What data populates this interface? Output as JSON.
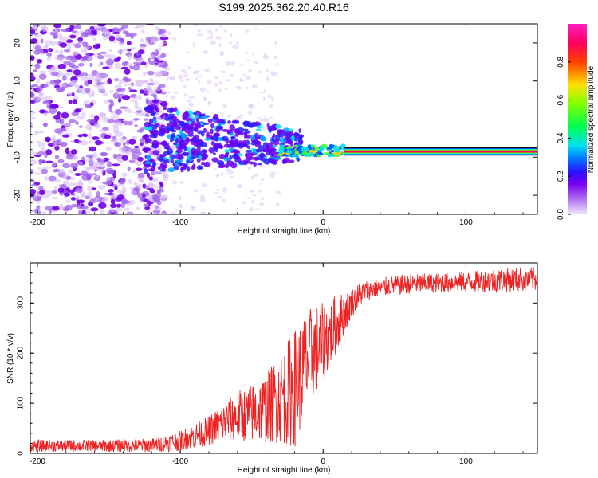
{
  "title": "S199.2025.362.20.40.R16",
  "chart_data": [
    {
      "type": "heatmap",
      "name": "spectrogram",
      "xlabel": "Height of straight line (km)",
      "ylabel": "Frequency (Hz)",
      "xlim": [
        -205,
        150
      ],
      "ylim": [
        -25,
        25
      ],
      "xticks": [
        -200,
        -100,
        0,
        100
      ],
      "yticks": [
        -20,
        -10,
        0,
        10,
        20
      ],
      "colorbar": {
        "label": "Normalized spectral amplitude",
        "range": [
          0.0,
          1.0
        ],
        "ticks": [
          0.0,
          0.2,
          0.4,
          0.6,
          0.8
        ],
        "colors": [
          "#e8d8f8",
          "#b070f0",
          "#6a00f0",
          "#1a10ff",
          "#00a0ff",
          "#00f0f0",
          "#00ff40",
          "#a0ff00",
          "#ffd000",
          "#ff4000",
          "#ff0060",
          "#ff20c0"
        ]
      },
      "signal_line": {
        "frequency_hz": -8.5,
        "x_start": 15,
        "x_end": 150,
        "amplitude": 1.0
      },
      "noise_description_values": {
        "dense_noise_x_range": [
          -205,
          -120
        ],
        "transition_cluster_x_range": [
          -120,
          -30
        ],
        "transition_cluster_freq_center": -5
      }
    },
    {
      "type": "line",
      "name": "snr",
      "xlabel": "Height of straight line (km)",
      "ylabel": "SNR (10 * v/v)",
      "xlim": [
        -205,
        150
      ],
      "ylim": [
        0,
        380
      ],
      "xticks": [
        -200,
        -100,
        0,
        100
      ],
      "yticks": [
        0,
        100,
        200,
        300
      ],
      "series": [
        {
          "name": "SNR",
          "color": "#ee2222",
          "x": [
            -205,
            -180,
            -150,
            -120,
            -100,
            -90,
            -80,
            -70,
            -60,
            -50,
            -40,
            -30,
            -20,
            -15,
            -10,
            -5,
            0,
            5,
            10,
            15,
            20,
            25,
            30,
            40,
            50,
            60,
            80,
            100,
            120,
            150
          ],
          "y": [
            15,
            15,
            15,
            16,
            25,
            35,
            45,
            60,
            75,
            80,
            90,
            110,
            130,
            160,
            190,
            210,
            220,
            240,
            260,
            280,
            300,
            315,
            325,
            330,
            335,
            338,
            340,
            342,
            345,
            348
          ],
          "noise": [
            12,
            12,
            12,
            14,
            20,
            25,
            30,
            40,
            50,
            60,
            70,
            90,
            120,
            110,
            100,
            90,
            80,
            70,
            60,
            40,
            30,
            25,
            20,
            20,
            20,
            20,
            20,
            20,
            25,
            25
          ]
        }
      ]
    }
  ]
}
